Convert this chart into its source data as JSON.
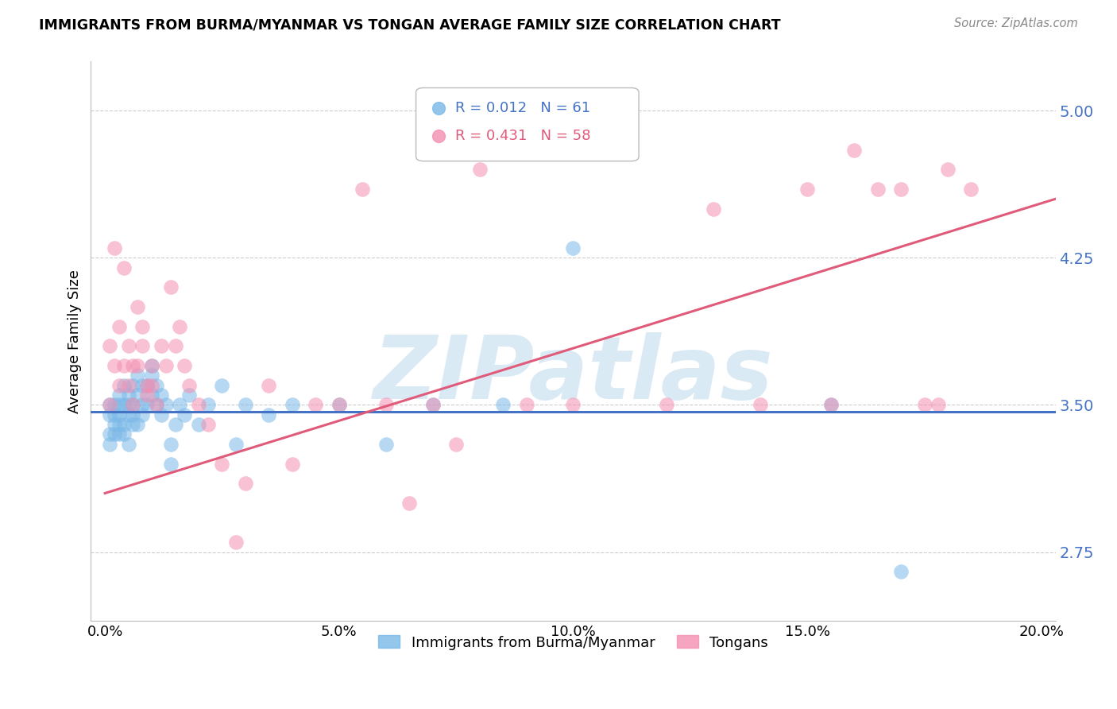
{
  "title": "IMMIGRANTS FROM BURMA/MYANMAR VS TONGAN AVERAGE FAMILY SIZE CORRELATION CHART",
  "source": "Source: ZipAtlas.com",
  "ylabel": "Average Family Size",
  "xlabel_ticks": [
    "0.0%",
    "5.0%",
    "10.0%",
    "15.0%",
    "20.0%"
  ],
  "xlabel_vals": [
    0.0,
    0.05,
    0.1,
    0.15,
    0.2
  ],
  "yticks": [
    2.75,
    3.5,
    4.25,
    5.0
  ],
  "ylim": [
    2.4,
    5.25
  ],
  "xlim": [
    -0.003,
    0.203
  ],
  "color_blue": "#7ab8e8",
  "color_pink": "#f48fb1",
  "line_blue": "#4472c4",
  "line_pink": "#e05a7a",
  "watermark": "ZIPatlas",
  "watermark_color": "#daeaf5",
  "blue_R": 0.012,
  "blue_N": 61,
  "pink_R": 0.431,
  "pink_N": 58,
  "blue_line_y0": 3.465,
  "blue_line_y1": 3.465,
  "pink_line_x0": 0.0,
  "pink_line_y0": 3.05,
  "pink_line_x1": 0.203,
  "pink_line_y1": 4.55,
  "blue_scatter_x": [
    0.001,
    0.001,
    0.001,
    0.001,
    0.002,
    0.002,
    0.002,
    0.002,
    0.003,
    0.003,
    0.003,
    0.003,
    0.003,
    0.004,
    0.004,
    0.004,
    0.004,
    0.005,
    0.005,
    0.005,
    0.005,
    0.006,
    0.006,
    0.006,
    0.006,
    0.007,
    0.007,
    0.007,
    0.008,
    0.008,
    0.008,
    0.009,
    0.009,
    0.01,
    0.01,
    0.01,
    0.011,
    0.011,
    0.012,
    0.012,
    0.013,
    0.014,
    0.014,
    0.015,
    0.016,
    0.017,
    0.018,
    0.02,
    0.022,
    0.025,
    0.028,
    0.03,
    0.035,
    0.04,
    0.05,
    0.06,
    0.07,
    0.085,
    0.1,
    0.155,
    0.17
  ],
  "blue_scatter_y": [
    3.45,
    3.35,
    3.5,
    3.3,
    3.4,
    3.5,
    3.35,
    3.45,
    3.5,
    3.4,
    3.35,
    3.55,
    3.45,
    3.4,
    3.5,
    3.6,
    3.35,
    3.45,
    3.5,
    3.3,
    3.55,
    3.4,
    3.5,
    3.6,
    3.45,
    3.55,
    3.65,
    3.4,
    3.5,
    3.6,
    3.45,
    3.5,
    3.6,
    3.55,
    3.65,
    3.7,
    3.5,
    3.6,
    3.45,
    3.55,
    3.5,
    3.3,
    3.2,
    3.4,
    3.5,
    3.45,
    3.55,
    3.4,
    3.5,
    3.6,
    3.3,
    3.5,
    3.45,
    3.5,
    3.5,
    3.3,
    3.5,
    3.5,
    4.3,
    3.5,
    2.65
  ],
  "pink_scatter_x": [
    0.001,
    0.001,
    0.002,
    0.002,
    0.003,
    0.003,
    0.004,
    0.004,
    0.005,
    0.005,
    0.006,
    0.006,
    0.007,
    0.007,
    0.008,
    0.008,
    0.009,
    0.009,
    0.01,
    0.01,
    0.011,
    0.012,
    0.013,
    0.014,
    0.015,
    0.016,
    0.017,
    0.018,
    0.02,
    0.022,
    0.025,
    0.028,
    0.03,
    0.035,
    0.04,
    0.045,
    0.05,
    0.055,
    0.06,
    0.065,
    0.07,
    0.075,
    0.08,
    0.09,
    0.1,
    0.11,
    0.12,
    0.13,
    0.14,
    0.15,
    0.155,
    0.16,
    0.165,
    0.17,
    0.175,
    0.178,
    0.18,
    0.185
  ],
  "pink_scatter_y": [
    3.5,
    3.8,
    4.3,
    3.7,
    3.6,
    3.9,
    4.2,
    3.7,
    3.8,
    3.6,
    3.7,
    3.5,
    4.0,
    3.7,
    3.8,
    3.9,
    3.6,
    3.55,
    3.7,
    3.6,
    3.5,
    3.8,
    3.7,
    4.1,
    3.8,
    3.9,
    3.7,
    3.6,
    3.5,
    3.4,
    3.2,
    2.8,
    3.1,
    3.6,
    3.2,
    3.5,
    3.5,
    4.6,
    3.5,
    3.0,
    3.5,
    3.3,
    4.7,
    3.5,
    3.5,
    4.8,
    3.5,
    4.5,
    3.5,
    4.6,
    3.5,
    4.8,
    4.6,
    4.6,
    3.5,
    3.5,
    4.7,
    4.6
  ]
}
